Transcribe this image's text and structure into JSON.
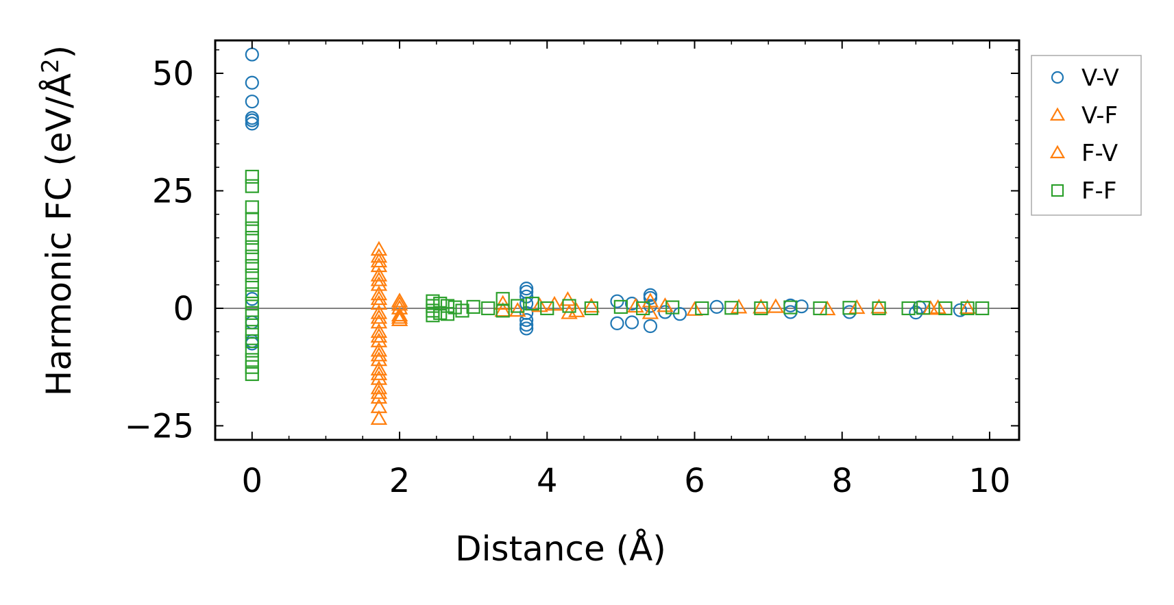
{
  "chart_data": {
    "type": "scatter",
    "xlabel": "Distance (Å)",
    "ylabel": "Harmonic FC (eV/Å",
    "ylabel_superscript": "2",
    "ylabel_close": ")",
    "xlim": [
      -0.5,
      10.4
    ],
    "ylim": [
      -28,
      57
    ],
    "x_ticks": [
      0,
      2,
      4,
      6,
      8,
      10
    ],
    "x_tick_labels": [
      "0",
      "2",
      "4",
      "6",
      "8",
      "10"
    ],
    "y_ticks": [
      -25,
      0,
      25,
      50
    ],
    "y_tick_labels": [
      "−25",
      "0",
      "25",
      "50"
    ],
    "zero_line": true,
    "grid": false,
    "legend_position": "outside-right-top",
    "series": [
      {
        "name": "V-V",
        "marker": "circle",
        "color": "#1f77b4",
        "points": [
          [
            0,
            54
          ],
          [
            0,
            48
          ],
          [
            0,
            44
          ],
          [
            0,
            40.5
          ],
          [
            0,
            40
          ],
          [
            0,
            39.3
          ],
          [
            0,
            -7
          ],
          [
            0,
            -7.5
          ],
          [
            0,
            -3
          ],
          [
            0,
            2
          ],
          [
            3.72,
            4.2
          ],
          [
            3.72,
            3.5
          ],
          [
            3.72,
            2.5
          ],
          [
            3.72,
            1
          ],
          [
            3.72,
            -1
          ],
          [
            3.72,
            -2.5
          ],
          [
            3.72,
            -3.5
          ],
          [
            3.72,
            -4.3
          ],
          [
            4.95,
            1.5
          ],
          [
            4.95,
            -3.2
          ],
          [
            5.15,
            -3
          ],
          [
            5.15,
            1
          ],
          [
            5.4,
            2.8
          ],
          [
            5.4,
            2.2
          ],
          [
            5.4,
            -3.8
          ],
          [
            5.4,
            0.5
          ],
          [
            5.6,
            -0.8
          ],
          [
            5.8,
            -1.2
          ],
          [
            6.3,
            0.3
          ],
          [
            7.3,
            -0.8
          ],
          [
            7.3,
            0.6
          ],
          [
            7.45,
            0.4
          ],
          [
            8.1,
            -0.8
          ],
          [
            9.0,
            -0.9
          ],
          [
            9.05,
            0.2
          ],
          [
            9.6,
            -0.4
          ]
        ]
      },
      {
        "name": "V-F",
        "marker": "triangle",
        "color": "#ff7f0e",
        "points": [
          [
            1.72,
            12.5
          ],
          [
            1.72,
            11
          ],
          [
            1.72,
            9
          ],
          [
            1.72,
            7
          ],
          [
            1.72,
            5
          ],
          [
            1.72,
            3
          ],
          [
            1.72,
            1
          ],
          [
            1.72,
            -1
          ],
          [
            1.72,
            -3
          ],
          [
            1.72,
            -5
          ],
          [
            1.72,
            -7
          ],
          [
            1.72,
            -9
          ],
          [
            1.72,
            -11
          ],
          [
            1.72,
            -13
          ],
          [
            1.72,
            -15
          ],
          [
            1.72,
            -17
          ],
          [
            1.72,
            -19
          ],
          [
            1.72,
            -21
          ],
          [
            1.72,
            -23.5
          ],
          [
            2.0,
            1.5
          ],
          [
            2.0,
            0
          ],
          [
            2.0,
            -1.5
          ],
          [
            2.0,
            -2.5
          ],
          [
            3.4,
            1
          ],
          [
            3.6,
            -0.5
          ],
          [
            3.9,
            0.5
          ],
          [
            4.28,
            1.8
          ],
          [
            4.3,
            -1
          ],
          [
            4.6,
            0.4
          ],
          [
            5.4,
            1.5
          ],
          [
            5.4,
            -1
          ],
          [
            5.6,
            0.5
          ],
          [
            6.6,
            0.2
          ],
          [
            7.1,
            0.3
          ],
          [
            7.8,
            -0.2
          ],
          [
            8.5,
            0.2
          ],
          [
            9.3,
            0.1
          ],
          [
            9.7,
            0.1
          ]
        ]
      },
      {
        "name": "F-V",
        "marker": "triangle",
        "color": "#ff7f0e",
        "points": [
          [
            1.72,
            10
          ],
          [
            1.72,
            6
          ],
          [
            1.72,
            2
          ],
          [
            1.72,
            -2
          ],
          [
            1.72,
            -6
          ],
          [
            1.72,
            -10
          ],
          [
            1.72,
            -14
          ],
          [
            1.72,
            -18
          ],
          [
            2.0,
            0.8
          ],
          [
            2.0,
            -2
          ],
          [
            3.4,
            -0.5
          ],
          [
            4.1,
            0.8
          ],
          [
            4.4,
            -0.6
          ],
          [
            5.2,
            0.4
          ],
          [
            6.0,
            -0.3
          ],
          [
            6.9,
            0.2
          ],
          [
            8.2,
            0.1
          ],
          [
            9.2,
            -0.1
          ]
        ]
      },
      {
        "name": "F-F",
        "marker": "square",
        "color": "#2ca02c",
        "points": [
          [
            0,
            28
          ],
          [
            0,
            26
          ],
          [
            0,
            21.5
          ],
          [
            0,
            19
          ],
          [
            0,
            17
          ],
          [
            0,
            15
          ],
          [
            0,
            13
          ],
          [
            0,
            11
          ],
          [
            0,
            9
          ],
          [
            0,
            7
          ],
          [
            0,
            5
          ],
          [
            0,
            3
          ],
          [
            0,
            1
          ],
          [
            0,
            -1
          ],
          [
            0,
            -3
          ],
          [
            0,
            -5
          ],
          [
            0,
            -7
          ],
          [
            0,
            -9
          ],
          [
            0,
            -11
          ],
          [
            0,
            -12.5
          ],
          [
            0,
            -14
          ],
          [
            2.45,
            1.5
          ],
          [
            2.45,
            0.5
          ],
          [
            2.45,
            -0.5
          ],
          [
            2.45,
            -1.5
          ],
          [
            2.55,
            1
          ],
          [
            2.55,
            -1
          ],
          [
            2.65,
            0.5
          ],
          [
            2.65,
            -1.2
          ],
          [
            2.75,
            0.2
          ],
          [
            2.85,
            -0.5
          ],
          [
            3.0,
            0.3
          ],
          [
            3.2,
            0
          ],
          [
            3.4,
            2
          ],
          [
            3.4,
            -0.5
          ],
          [
            3.6,
            0.5
          ],
          [
            3.8,
            1
          ],
          [
            4.0,
            0
          ],
          [
            4.3,
            0.5
          ],
          [
            4.6,
            0
          ],
          [
            5.0,
            0.3
          ],
          [
            5.3,
            0
          ],
          [
            5.7,
            0.2
          ],
          [
            6.1,
            0
          ],
          [
            6.5,
            0.1
          ],
          [
            6.9,
            0
          ],
          [
            7.3,
            0.2
          ],
          [
            7.7,
            0
          ],
          [
            8.1,
            0.1
          ],
          [
            8.5,
            0
          ],
          [
            8.9,
            0
          ],
          [
            9.1,
            0.1
          ],
          [
            9.4,
            0
          ],
          [
            9.7,
            0
          ],
          [
            9.9,
            0
          ]
        ]
      }
    ]
  }
}
